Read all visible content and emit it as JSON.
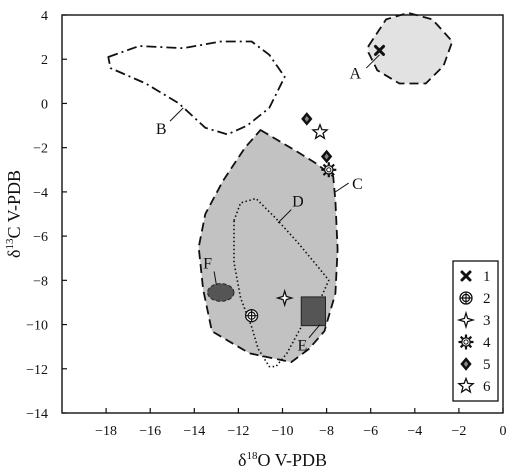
{
  "chart_data": {
    "type": "scatter",
    "title": "",
    "xlabel": {
      "prefix": "δ",
      "sup": "18",
      "text": "O V-PDB"
    },
    "ylabel": {
      "prefix": "δ",
      "sup": "13",
      "text": "C V-PDB"
    },
    "xlim": [
      -20,
      0
    ],
    "ylim": [
      -14,
      4
    ],
    "x_ticks": [
      -18,
      -16,
      -14,
      -12,
      -10,
      -8,
      -6,
      -4,
      -2,
      0
    ],
    "y_ticks": [
      4,
      2,
      0,
      -2,
      -4,
      -6,
      -8,
      -10,
      -12,
      -14
    ],
    "grid": false,
    "legend_position": "bottom-right",
    "colors": {
      "fill_light": "#e2e2e2",
      "fill_mid": "#c2c2c2",
      "fill_dark": "#555555",
      "ink": "#111111"
    },
    "regions": [
      {
        "label": "A",
        "style": "dashed",
        "fill": "#e2e2e2",
        "points": [
          [
            -6.1,
            2.6
          ],
          [
            -5.3,
            3.8
          ],
          [
            -4.3,
            4.1
          ],
          [
            -3.2,
            3.8
          ],
          [
            -2.3,
            2.8
          ],
          [
            -2.7,
            1.7
          ],
          [
            -3.5,
            0.9
          ],
          [
            -4.7,
            0.9
          ],
          [
            -5.7,
            1.5
          ],
          [
            -6.1,
            2.3
          ]
        ]
      },
      {
        "label": "B",
        "style": "dashdot",
        "fill": "none",
        "points": [
          [
            -17.9,
            2.1
          ],
          [
            -16.5,
            2.6
          ],
          [
            -14.5,
            2.5
          ],
          [
            -12.8,
            2.8
          ],
          [
            -11.4,
            2.8
          ],
          [
            -10.6,
            2.2
          ],
          [
            -9.9,
            1.2
          ],
          [
            -10.6,
            -0.2
          ],
          [
            -11.6,
            -1.0
          ],
          [
            -12.5,
            -1.4
          ],
          [
            -13.5,
            -1.1
          ],
          [
            -14.7,
            0.0
          ],
          [
            -16.2,
            0.9
          ],
          [
            -17.8,
            1.6
          ],
          [
            -17.9,
            2.1
          ]
        ]
      },
      {
        "label": "C",
        "style": "dashed",
        "fill": "#c2c2c2",
        "points": [
          [
            -11.0,
            -1.2
          ],
          [
            -9.3,
            -2.2
          ],
          [
            -8.5,
            -2.7
          ],
          [
            -7.7,
            -3.3
          ],
          [
            -7.6,
            -4.4
          ],
          [
            -7.5,
            -6.6
          ],
          [
            -7.6,
            -8.6
          ],
          [
            -8.1,
            -10.3
          ],
          [
            -8.8,
            -11.1
          ],
          [
            -9.6,
            -11.7
          ],
          [
            -11.5,
            -11.3
          ],
          [
            -13.2,
            -10.3
          ],
          [
            -13.6,
            -8.4
          ],
          [
            -13.8,
            -6.5
          ],
          [
            -13.5,
            -5.0
          ],
          [
            -12.7,
            -3.5
          ],
          [
            -11.7,
            -2.0
          ],
          [
            -11.0,
            -1.2
          ]
        ]
      },
      {
        "label": "D",
        "style": "dotted",
        "fill": "none",
        "points": [
          [
            -12.2,
            -5.3
          ],
          [
            -11.9,
            -4.5
          ],
          [
            -11.2,
            -4.3
          ],
          [
            -10.3,
            -5.2
          ],
          [
            -9.3,
            -6.3
          ],
          [
            -8.3,
            -7.5
          ],
          [
            -7.9,
            -8.0
          ],
          [
            -8.4,
            -9.1
          ],
          [
            -9.2,
            -10.2
          ],
          [
            -9.8,
            -11.3
          ],
          [
            -10.3,
            -11.9
          ],
          [
            -10.6,
            -11.9
          ],
          [
            -11.1,
            -11.1
          ],
          [
            -11.4,
            -10.1
          ],
          [
            -11.9,
            -8.8
          ],
          [
            -12.2,
            -7.2
          ],
          [
            -12.2,
            -5.3
          ]
        ]
      }
    ],
    "special_shapes": [
      {
        "label": "E",
        "shape": "square",
        "x": -8.6,
        "y": -9.4,
        "half_width": 0.55,
        "half_height": 0.65,
        "fill": "#555555"
      },
      {
        "label": "F",
        "shape": "ellipse",
        "x": -12.8,
        "y": -8.55,
        "rx": 0.6,
        "ry": 0.4,
        "fill": "#555555"
      }
    ],
    "region_labels": [
      {
        "text": "A",
        "x": -6.7,
        "y": 1.4,
        "leader": [
          [
            -6.2,
            1.6
          ],
          [
            -5.6,
            2.2
          ]
        ]
      },
      {
        "text": "B",
        "x": -15.5,
        "y": -1.1,
        "leader": [
          [
            -15.1,
            -0.8
          ],
          [
            -14.5,
            -0.2
          ]
        ]
      },
      {
        "text": "C",
        "x": -6.6,
        "y": -3.6,
        "leader": [
          [
            -7.0,
            -3.6
          ],
          [
            -7.6,
            -4.0
          ]
        ]
      },
      {
        "text": "D",
        "x": -9.3,
        "y": -4.4,
        "leader": [
          [
            -9.6,
            -4.8
          ],
          [
            -10.2,
            -5.4
          ]
        ]
      },
      {
        "text": "E",
        "x": -9.1,
        "y": -10.9,
        "leader": [
          [
            -8.8,
            -10.6
          ],
          [
            -8.3,
            -10.0
          ]
        ]
      },
      {
        "text": "F",
        "x": -13.4,
        "y": -7.2,
        "leader": [
          [
            -13.1,
            -7.6
          ],
          [
            -13.0,
            -8.2
          ]
        ]
      }
    ],
    "series": [
      {
        "name": "1",
        "marker": "x-cross",
        "points": [
          [
            -5.6,
            2.4
          ]
        ]
      },
      {
        "name": "2",
        "marker": "circle-plus",
        "points": [
          [
            -11.4,
            -9.6
          ]
        ]
      },
      {
        "name": "3",
        "marker": "star4",
        "points": [
          [
            -9.9,
            -8.8
          ]
        ]
      },
      {
        "name": "4",
        "marker": "sun",
        "points": [
          [
            -7.9,
            -3.0
          ]
        ]
      },
      {
        "name": "5",
        "marker": "diamond",
        "points": [
          [
            -8.9,
            -0.7
          ],
          [
            -8.0,
            -2.4
          ]
        ]
      },
      {
        "name": "6",
        "marker": "star-outline",
        "points": [
          [
            -8.3,
            -1.3
          ]
        ]
      }
    ]
  }
}
